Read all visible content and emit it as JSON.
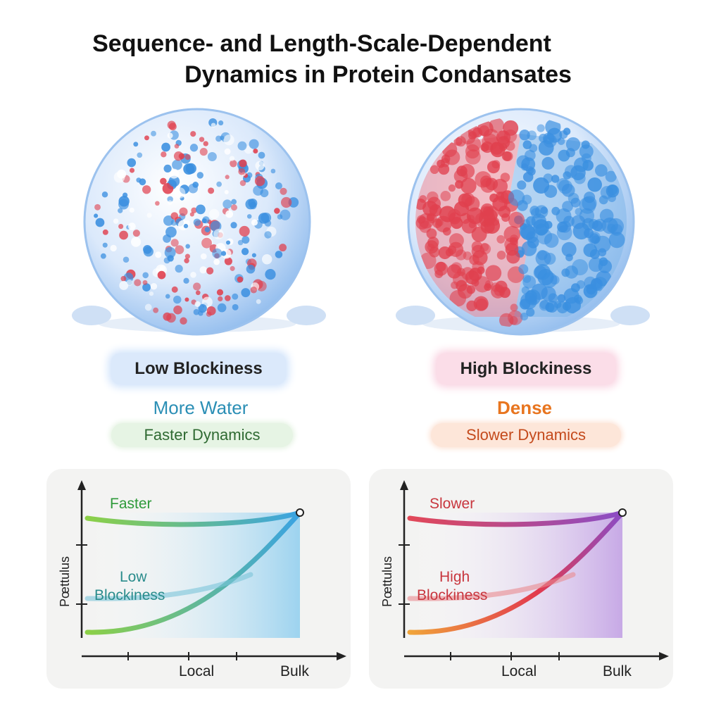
{
  "title": {
    "line1": "Sequence- and Length-Scale-Dependent",
    "line2": "Dynamics in Protein Condansates"
  },
  "left": {
    "heading": "Low Blockiness",
    "property": "More Water",
    "dynamics": "Faster Dynamics",
    "chart": {
      "ylabel": "Pœttulus",
      "curve_label": "Faster",
      "region_label_1": "Low",
      "region_label_2": "Blockiness",
      "xtick_local": "Local",
      "xtick_bulk": "Bulk"
    }
  },
  "right": {
    "heading": "High Blockiness",
    "property": "Dense",
    "dynamics": "Slower Dynamics",
    "chart": {
      "ylabel": "Pœttulus",
      "curve_label": "Slower",
      "region_label_1": "High",
      "region_label_2": "Blockiness",
      "xtick_local": "Local",
      "xtick_bulk": "Bulk"
    }
  },
  "colors": {
    "low_accent": "#2b8fb5",
    "faster_green": "#2e9a3a",
    "dense_orange": "#e8751f",
    "slower_red": "#c8363e",
    "droplet_blue": "#3a8fe0",
    "droplet_red": "#e0404e"
  }
}
